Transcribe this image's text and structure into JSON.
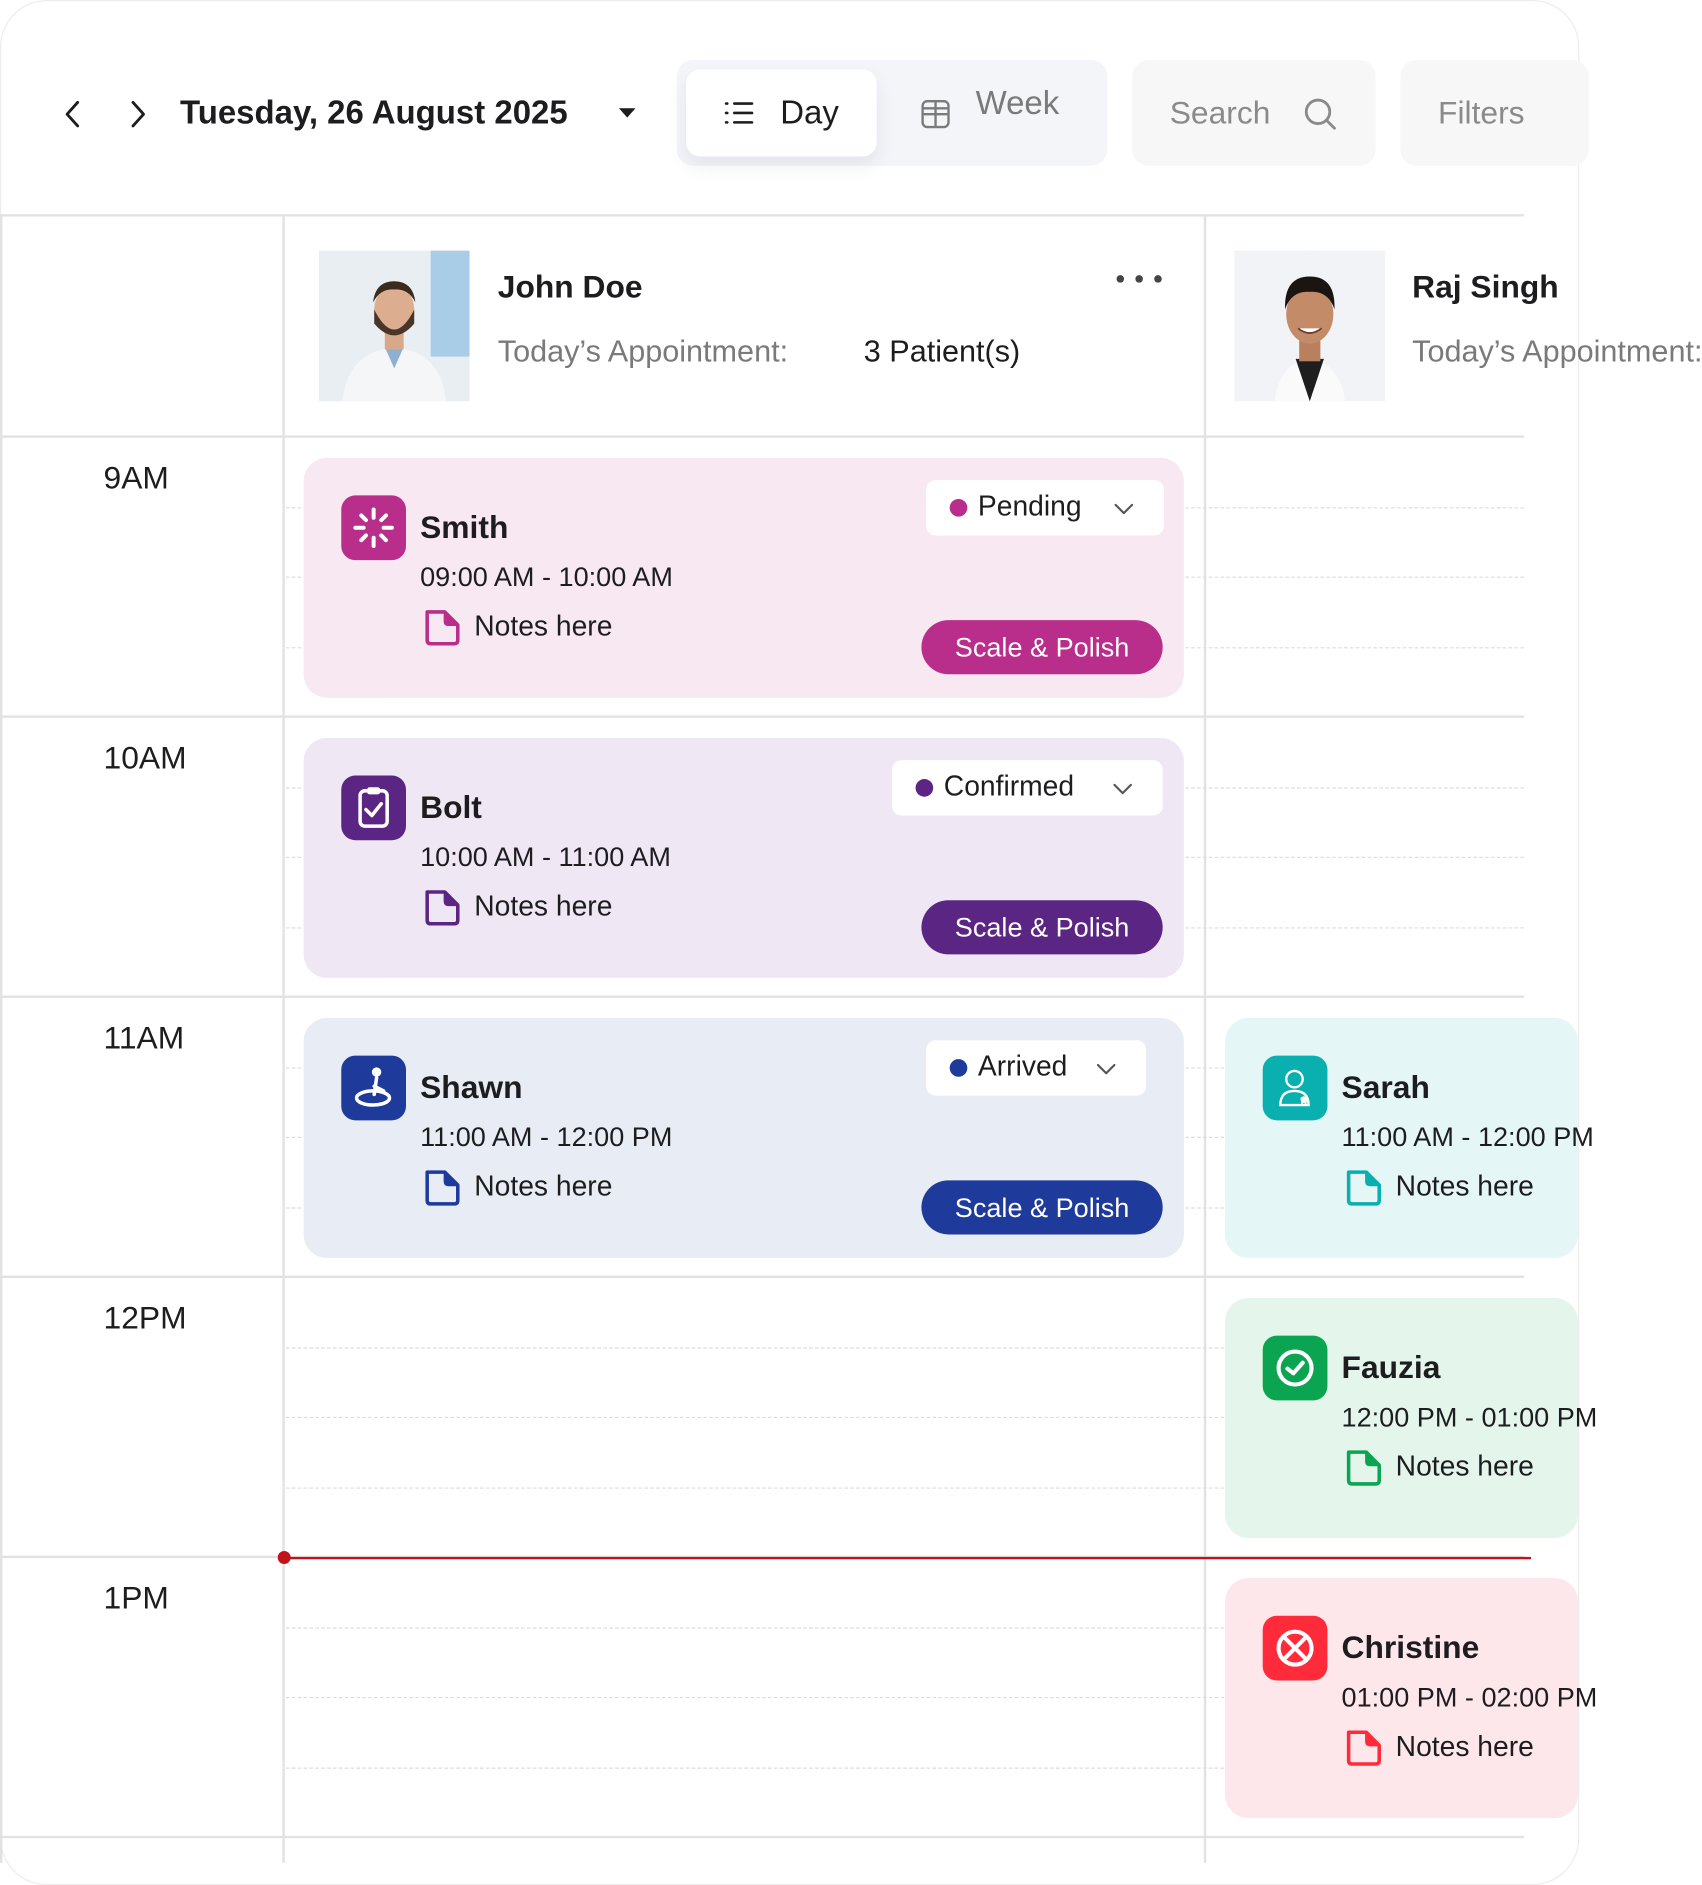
{
  "header": {
    "date": "Tuesday, 26 August 2025",
    "view_toggle": {
      "day": "Day",
      "week": "Week",
      "selected": "Day"
    },
    "search_label": "Search",
    "filters_label": "Filters"
  },
  "doctors": [
    {
      "name": "John Doe",
      "appointment_label": "Today’s Appointment:",
      "count": "3 Patient(s)"
    },
    {
      "name": "Raj Singh",
      "appointment_label": "Today’s Appointment:"
    }
  ],
  "hours": [
    "9AM",
    "10AM",
    "11AM",
    "12PM",
    "1PM"
  ],
  "colors": {
    "pink": "#b92e8a",
    "purple": "#5b2583",
    "blue": "#1e3a9a",
    "teal": "#0aafb0",
    "green": "#0ba552",
    "red": "#ff2a3a",
    "now_line": "#c2121a"
  },
  "appointments": [
    {
      "column": 0,
      "hour": 0,
      "name": "Smith",
      "time": "09:00 AM - 10:00 AM",
      "notes": "Notes here",
      "status": "Pending",
      "treatment": "Scale & Polish",
      "icon": "loader-icon",
      "color": "#b92e8a",
      "bg": "#f7e8f2"
    },
    {
      "column": 0,
      "hour": 1,
      "name": "Bolt",
      "time": "10:00 AM - 11:00 AM",
      "notes": "Notes here",
      "status": "Confirmed",
      "treatment": "Scale & Polish",
      "icon": "clipboard-check-icon",
      "color": "#5b2583",
      "bg": "#efe8f4"
    },
    {
      "column": 0,
      "hour": 2,
      "name": "Shawn",
      "time": "11:00 AM - 12:00 PM",
      "notes": "Notes here",
      "status": "Arrived",
      "treatment": "Scale & Polish",
      "icon": "person-arrived-icon",
      "color": "#1e3a9a",
      "bg": "#e8ecf4"
    },
    {
      "column": 1,
      "hour": 2,
      "name": "Sarah",
      "time": "11:00 AM - 12:00 PM",
      "notes": "Notes here",
      "icon": "dentist-icon",
      "color": "#0aafb0",
      "bg": "#e5f6f6"
    },
    {
      "column": 1,
      "hour": 3,
      "name": "Fauzia",
      "time": "12:00 PM - 01:00 PM",
      "notes": "Notes here",
      "icon": "check-circle-icon",
      "color": "#0ba552",
      "bg": "#e4f5ec"
    },
    {
      "column": 1,
      "hour": 4,
      "name": "Christine",
      "time": "01:00 PM - 02:00 PM",
      "notes": "Notes here",
      "icon": "x-circle-icon",
      "color": "#ff2a3a",
      "bg": "#fde7ea"
    }
  ]
}
